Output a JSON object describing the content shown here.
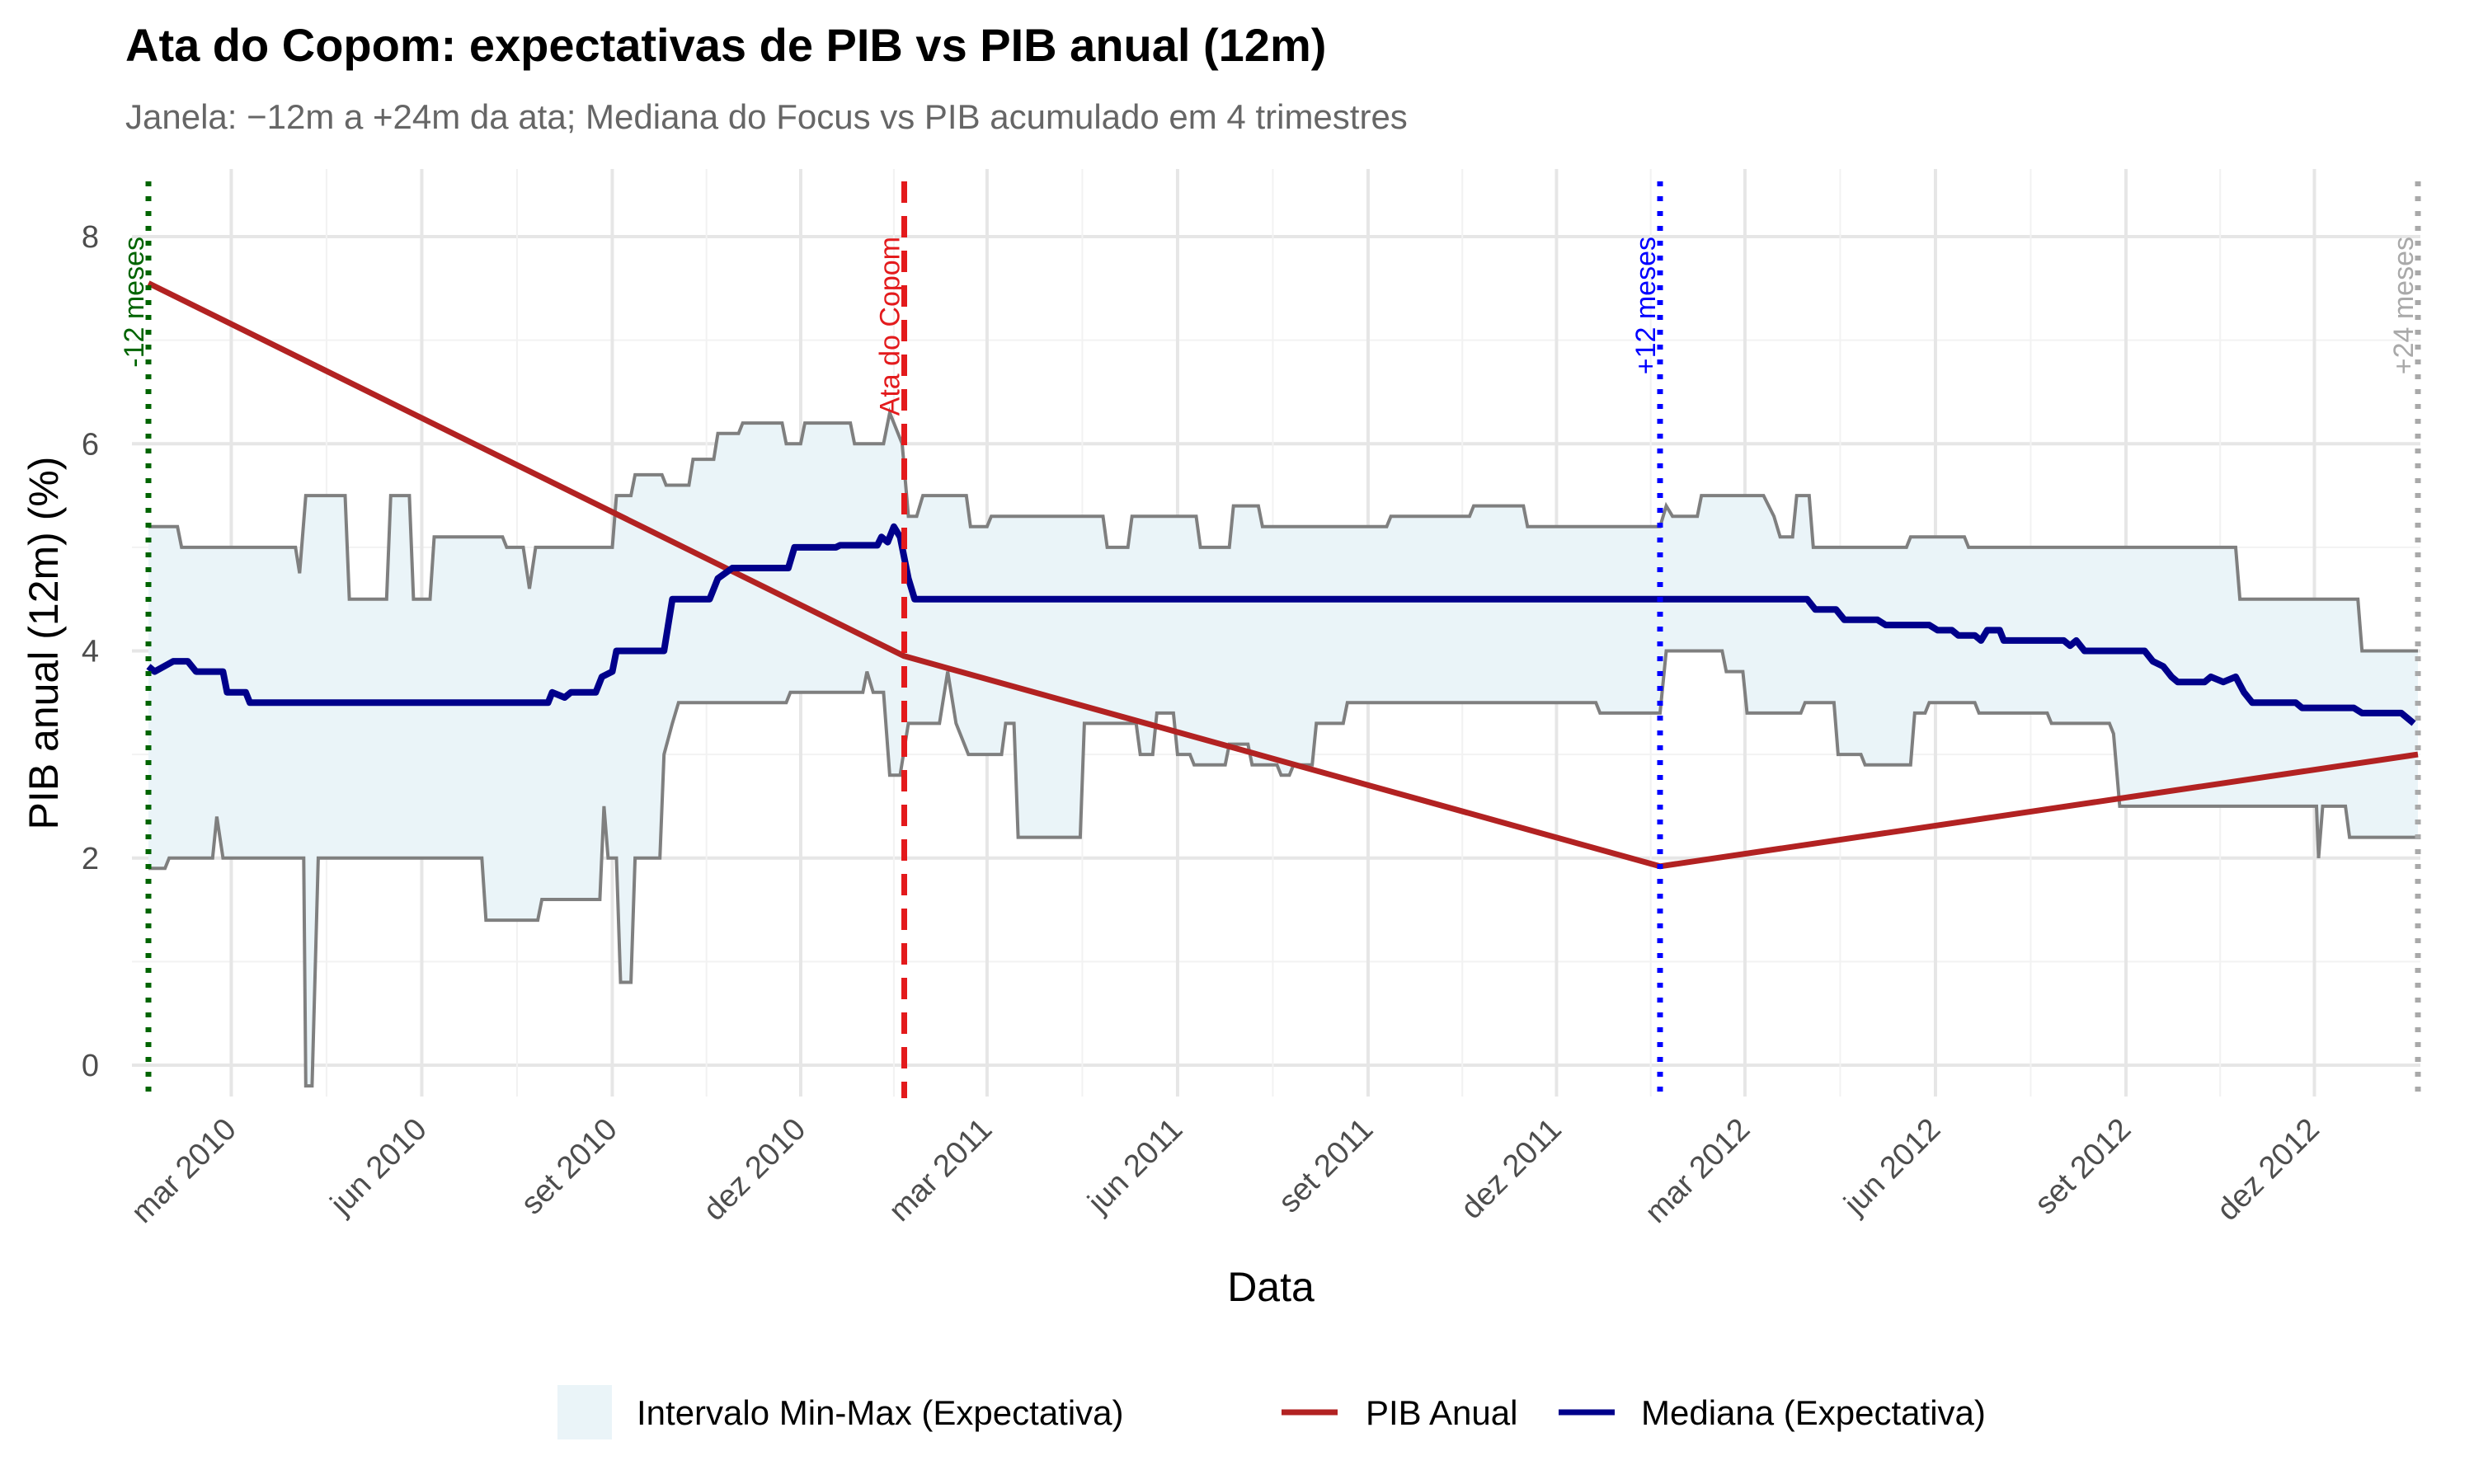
{
  "chart_data": {
    "type": "line",
    "title": "Ata do Copom: expectativas de PIB vs PIB anual (12m)",
    "subtitle": "Janela: −12m a +24m da ata; Mediana do Focus vs PIB acumulado em 4 trimestres",
    "xlabel": "Data",
    "ylabel": "PIB anual (12m) (%)",
    "xlim": [
      "2010-01-20",
      "2013-01-20"
    ],
    "ylim": [
      -0.2,
      8.6
    ],
    "grid": true,
    "legend_position": "bottom",
    "x_ticks": [
      {
        "date": "2010-03-01",
        "label": "mar 2010"
      },
      {
        "date": "2010-06-01",
        "label": "jun 2010"
      },
      {
        "date": "2010-09-01",
        "label": "set 2010"
      },
      {
        "date": "2010-12-01",
        "label": "dez 2010"
      },
      {
        "date": "2011-03-01",
        "label": "mar 2011"
      },
      {
        "date": "2011-06-01",
        "label": "jun 2011"
      },
      {
        "date": "2011-09-01",
        "label": "set 2011"
      },
      {
        "date": "2011-12-01",
        "label": "dez 2011"
      },
      {
        "date": "2012-03-01",
        "label": "mar 2012"
      },
      {
        "date": "2012-06-01",
        "label": "jun 2012"
      },
      {
        "date": "2012-09-01",
        "label": "set 2012"
      },
      {
        "date": "2012-12-01",
        "label": "dez 2012"
      }
    ],
    "y_ticks": [
      {
        "value": 0,
        "label": "0"
      },
      {
        "value": 2,
        "label": "2"
      },
      {
        "value": 4,
        "label": "4"
      },
      {
        "value": 6,
        "label": "6"
      },
      {
        "value": 8,
        "label": "8"
      }
    ],
    "vlines": [
      {
        "date": "2010-01-20",
        "label": "-12 meses",
        "color": "#006400",
        "style": "dotted"
      },
      {
        "date": "2011-01-20",
        "label": "Ata do Copom",
        "color": "#e31a1c",
        "style": "dashed"
      },
      {
        "date": "2012-01-20",
        "label": "+12 meses",
        "color": "#0000ff",
        "style": "dotted"
      },
      {
        "date": "2013-01-20",
        "label": "+24 meses",
        "color": "#a9a9a9",
        "style": "dotted"
      }
    ],
    "series": [
      {
        "name": "PIB Anual",
        "color": "#b22222",
        "points": [
          [
            "2010-01-20",
            7.55
          ],
          [
            "2011-01-20",
            3.95
          ],
          [
            "2012-01-20",
            1.92
          ],
          [
            "2013-01-20",
            3.0
          ]
        ]
      },
      {
        "name": "Mediana (Expectativa)",
        "color": "#00008b",
        "points": [
          [
            "2010-01-20",
            3.85
          ],
          [
            "2010-01-23",
            3.8
          ],
          [
            "2010-02-01",
            3.9
          ],
          [
            "2010-02-08",
            3.9
          ],
          [
            "2010-02-12",
            3.8
          ],
          [
            "2010-02-25",
            3.8
          ],
          [
            "2010-02-27",
            3.6
          ],
          [
            "2010-03-08",
            3.6
          ],
          [
            "2010-03-10",
            3.5
          ],
          [
            "2010-08-01",
            3.5
          ],
          [
            "2010-08-03",
            3.6
          ],
          [
            "2010-08-09",
            3.55
          ],
          [
            "2010-08-12",
            3.6
          ],
          [
            "2010-08-24",
            3.6
          ],
          [
            "2010-08-27",
            3.75
          ],
          [
            "2010-09-01",
            3.8
          ],
          [
            "2010-09-03",
            4.0
          ],
          [
            "2010-09-26",
            4.0
          ],
          [
            "2010-09-30",
            4.5
          ],
          [
            "2010-10-18",
            4.5
          ],
          [
            "2010-10-22",
            4.7
          ],
          [
            "2010-10-29",
            4.8
          ],
          [
            "2010-11-08",
            4.8
          ],
          [
            "2010-11-25",
            4.8
          ],
          [
            "2010-11-28",
            5.0
          ],
          [
            "2010-12-18",
            5.0
          ],
          [
            "2010-12-20",
            5.02
          ],
          [
            "2011-01-07",
            5.02
          ],
          [
            "2011-01-09",
            5.1
          ],
          [
            "2011-01-12",
            5.05
          ],
          [
            "2011-01-15",
            5.2
          ],
          [
            "2011-01-18",
            5.1
          ],
          [
            "2011-01-22",
            4.7
          ],
          [
            "2011-01-25",
            4.5
          ],
          [
            "2011-12-20",
            4.5
          ],
          [
            "2012-03-31",
            4.5
          ],
          [
            "2012-04-04",
            4.4
          ],
          [
            "2012-04-14",
            4.4
          ],
          [
            "2012-04-18",
            4.3
          ],
          [
            "2012-05-04",
            4.3
          ],
          [
            "2012-05-08",
            4.25
          ],
          [
            "2012-05-29",
            4.25
          ],
          [
            "2012-06-02",
            4.2
          ],
          [
            "2012-06-09",
            4.2
          ],
          [
            "2012-06-12",
            4.15
          ],
          [
            "2012-06-20",
            4.15
          ],
          [
            "2012-06-23",
            4.1
          ],
          [
            "2012-06-26",
            4.2
          ],
          [
            "2012-07-02",
            4.2
          ],
          [
            "2012-07-04",
            4.1
          ],
          [
            "2012-08-02",
            4.1
          ],
          [
            "2012-08-05",
            4.05
          ],
          [
            "2012-08-08",
            4.1
          ],
          [
            "2012-08-12",
            4.0
          ],
          [
            "2012-09-10",
            4.0
          ],
          [
            "2012-09-14",
            3.9
          ],
          [
            "2012-09-19",
            3.85
          ],
          [
            "2012-09-23",
            3.75
          ],
          [
            "2012-09-26",
            3.7
          ],
          [
            "2012-10-09",
            3.7
          ],
          [
            "2012-10-12",
            3.75
          ],
          [
            "2012-10-18",
            3.7
          ],
          [
            "2012-10-24",
            3.75
          ],
          [
            "2012-10-28",
            3.6
          ],
          [
            "2012-11-01",
            3.5
          ],
          [
            "2012-11-22",
            3.5
          ],
          [
            "2012-11-25",
            3.45
          ],
          [
            "2012-12-20",
            3.45
          ],
          [
            "2012-12-24",
            3.4
          ],
          [
            "2013-01-12",
            3.4
          ],
          [
            "2013-01-18",
            3.3
          ]
        ]
      }
    ],
    "band": {
      "name": "Intervalo Min-Max (Expectativa)",
      "fill": "#eaf4f8",
      "line_color": "#7f7f7f",
      "upper": [
        [
          "2010-01-20",
          5.2
        ],
        [
          "2010-02-03",
          5.2
        ],
        [
          "2010-02-05",
          5.0
        ],
        [
          "2010-04-01",
          5.0
        ],
        [
          "2010-04-03",
          4.75
        ],
        [
          "2010-04-06",
          5.5
        ],
        [
          "2010-04-25",
          5.5
        ],
        [
          "2010-04-27",
          4.5
        ],
        [
          "2010-05-15",
          4.5
        ],
        [
          "2010-05-17",
          5.5
        ],
        [
          "2010-05-26",
          5.5
        ],
        [
          "2010-05-28",
          4.5
        ],
        [
          "2010-06-05",
          4.5
        ],
        [
          "2010-06-07",
          5.1
        ],
        [
          "2010-07-10",
          5.1
        ],
        [
          "2010-07-12",
          5.0
        ],
        [
          "2010-07-20",
          5.0
        ],
        [
          "2010-07-23",
          4.6
        ],
        [
          "2010-07-26",
          5.0
        ],
        [
          "2010-09-01",
          5.0
        ],
        [
          "2010-09-03",
          5.5
        ],
        [
          "2010-09-10",
          5.5
        ],
        [
          "2010-09-12",
          5.7
        ],
        [
          "2010-09-25",
          5.7
        ],
        [
          "2010-09-27",
          5.6
        ],
        [
          "2010-10-08",
          5.6
        ],
        [
          "2010-10-10",
          5.85
        ],
        [
          "2010-10-20",
          5.85
        ],
        [
          "2010-10-22",
          6.1
        ],
        [
          "2010-11-01",
          6.1
        ],
        [
          "2010-11-03",
          6.2
        ],
        [
          "2010-11-22",
          6.2
        ],
        [
          "2010-11-24",
          6.0
        ],
        [
          "2010-12-01",
          6.0
        ],
        [
          "2010-12-03",
          6.2
        ],
        [
          "2010-12-25",
          6.2
        ],
        [
          "2010-12-27",
          6.0
        ],
        [
          "2011-01-10",
          6.0
        ],
        [
          "2011-01-13",
          6.3
        ],
        [
          "2011-01-19",
          6.0
        ],
        [
          "2011-01-22",
          5.3
        ],
        [
          "2011-01-26",
          5.3
        ],
        [
          "2011-01-29",
          5.5
        ],
        [
          "2011-02-19",
          5.5
        ],
        [
          "2011-02-21",
          5.2
        ],
        [
          "2011-03-01",
          5.2
        ],
        [
          "2011-03-03",
          5.3
        ],
        [
          "2011-04-26",
          5.3
        ],
        [
          "2011-04-28",
          5.0
        ],
        [
          "2011-05-08",
          5.0
        ],
        [
          "2011-05-10",
          5.3
        ],
        [
          "2011-06-10",
          5.3
        ],
        [
          "2011-06-12",
          5.0
        ],
        [
          "2011-06-26",
          5.0
        ],
        [
          "2011-06-28",
          5.4
        ],
        [
          "2011-07-10",
          5.4
        ],
        [
          "2011-07-12",
          5.2
        ],
        [
          "2011-09-10",
          5.2
        ],
        [
          "2011-09-12",
          5.3
        ],
        [
          "2011-10-20",
          5.3
        ],
        [
          "2011-10-22",
          5.4
        ],
        [
          "2011-11-15",
          5.4
        ],
        [
          "2011-11-17",
          5.2
        ],
        [
          "2012-01-20",
          5.2
        ],
        [
          "2012-01-23",
          5.4
        ],
        [
          "2012-01-26",
          5.3
        ],
        [
          "2012-02-07",
          5.3
        ],
        [
          "2012-02-09",
          5.5
        ],
        [
          "2012-03-10",
          5.5
        ],
        [
          "2012-03-15",
          5.3
        ],
        [
          "2012-03-18",
          5.1
        ],
        [
          "2012-03-24",
          5.1
        ],
        [
          "2012-03-26",
          5.5
        ],
        [
          "2012-04-01",
          5.5
        ],
        [
          "2012-04-03",
          5.0
        ],
        [
          "2012-05-18",
          5.0
        ],
        [
          "2012-05-20",
          5.1
        ],
        [
          "2012-06-15",
          5.1
        ],
        [
          "2012-06-17",
          5.0
        ],
        [
          "2012-10-24",
          5.0
        ],
        [
          "2012-10-26",
          4.5
        ],
        [
          "2012-12-22",
          4.5
        ],
        [
          "2012-12-24",
          4.0
        ],
        [
          "2013-01-20",
          4.0
        ]
      ],
      "lower": [
        [
          "2010-01-20",
          1.9
        ],
        [
          "2010-01-28",
          1.9
        ],
        [
          "2010-01-30",
          2.0
        ],
        [
          "2010-02-20",
          2.0
        ],
        [
          "2010-02-22",
          2.4
        ],
        [
          "2010-02-25",
          2.0
        ],
        [
          "2010-04-05",
          2.0
        ],
        [
          "2010-04-06",
          -0.2
        ],
        [
          "2010-04-09",
          -0.2
        ],
        [
          "2010-04-12",
          2.0
        ],
        [
          "2010-06-30",
          2.0
        ],
        [
          "2010-07-02",
          1.4
        ],
        [
          "2010-07-27",
          1.4
        ],
        [
          "2010-07-29",
          1.6
        ],
        [
          "2010-08-26",
          1.6
        ],
        [
          "2010-08-28",
          2.5
        ],
        [
          "2010-08-30",
          2.0
        ],
        [
          "2010-09-03",
          2.0
        ],
        [
          "2010-09-05",
          0.8
        ],
        [
          "2010-09-10",
          0.8
        ],
        [
          "2010-09-12",
          2.0
        ],
        [
          "2010-09-24",
          2.0
        ],
        [
          "2010-09-26",
          3.0
        ],
        [
          "2010-09-30",
          3.3
        ],
        [
          "2010-10-03",
          3.5
        ],
        [
          "2010-11-24",
          3.5
        ],
        [
          "2010-11-26",
          3.6
        ],
        [
          "2010-12-31",
          3.6
        ],
        [
          "2011-01-02",
          3.8
        ],
        [
          "2011-01-05",
          3.6
        ],
        [
          "2011-01-10",
          3.6
        ],
        [
          "2011-01-13",
          2.8
        ],
        [
          "2011-01-18",
          2.8
        ],
        [
          "2011-01-22",
          3.3
        ],
        [
          "2011-02-06",
          3.3
        ],
        [
          "2011-02-10",
          3.8
        ],
        [
          "2011-02-14",
          3.3
        ],
        [
          "2011-02-20",
          3.0
        ],
        [
          "2011-03-08",
          3.0
        ],
        [
          "2011-03-10",
          3.3
        ],
        [
          "2011-03-14",
          3.3
        ],
        [
          "2011-03-16",
          2.2
        ],
        [
          "2011-04-15",
          2.2
        ],
        [
          "2011-04-17",
          3.3
        ],
        [
          "2011-05-12",
          3.3
        ],
        [
          "2011-05-14",
          3.0
        ],
        [
          "2011-05-20",
          3.0
        ],
        [
          "2011-05-22",
          3.4
        ],
        [
          "2011-05-30",
          3.4
        ],
        [
          "2011-06-01",
          3.0
        ],
        [
          "2011-06-07",
          3.0
        ],
        [
          "2011-06-09",
          2.9
        ],
        [
          "2011-06-24",
          2.9
        ],
        [
          "2011-06-26",
          3.1
        ],
        [
          "2011-07-05",
          3.1
        ],
        [
          "2011-07-07",
          2.9
        ],
        [
          "2011-07-19",
          2.9
        ],
        [
          "2011-07-21",
          2.8
        ],
        [
          "2011-07-25",
          2.8
        ],
        [
          "2011-07-27",
          2.9
        ],
        [
          "2011-08-05",
          2.9
        ],
        [
          "2011-08-07",
          3.3
        ],
        [
          "2011-08-20",
          3.3
        ],
        [
          "2011-08-22",
          3.5
        ],
        [
          "2011-12-20",
          3.5
        ],
        [
          "2011-12-22",
          3.4
        ],
        [
          "2012-01-20",
          3.4
        ],
        [
          "2012-01-23",
          4.0
        ],
        [
          "2012-02-19",
          4.0
        ],
        [
          "2012-02-21",
          3.8
        ],
        [
          "2012-02-29",
          3.8
        ],
        [
          "2012-03-02",
          3.4
        ],
        [
          "2012-03-28",
          3.4
        ],
        [
          "2012-03-30",
          3.5
        ],
        [
          "2012-04-13",
          3.5
        ],
        [
          "2012-04-15",
          3.0
        ],
        [
          "2012-04-26",
          3.0
        ],
        [
          "2012-04-28",
          2.9
        ],
        [
          "2012-05-20",
          2.9
        ],
        [
          "2012-05-22",
          3.4
        ],
        [
          "2012-05-27",
          3.4
        ],
        [
          "2012-05-29",
          3.5
        ],
        [
          "2012-06-20",
          3.5
        ],
        [
          "2012-06-22",
          3.4
        ],
        [
          "2012-07-25",
          3.4
        ],
        [
          "2012-07-27",
          3.3
        ],
        [
          "2012-08-24",
          3.3
        ],
        [
          "2012-08-26",
          3.2
        ],
        [
          "2012-08-29",
          2.5
        ],
        [
          "2012-12-02",
          2.5
        ],
        [
          "2012-12-03",
          2.0
        ],
        [
          "2012-12-05",
          2.5
        ],
        [
          "2012-12-16",
          2.5
        ],
        [
          "2012-12-18",
          2.2
        ],
        [
          "2013-01-20",
          2.2
        ]
      ]
    }
  },
  "legend": {
    "band_label": "Intervalo Min-Max (Expectativa)",
    "pib_label": "PIB Anual",
    "median_label": "Mediana (Expectativa)"
  }
}
